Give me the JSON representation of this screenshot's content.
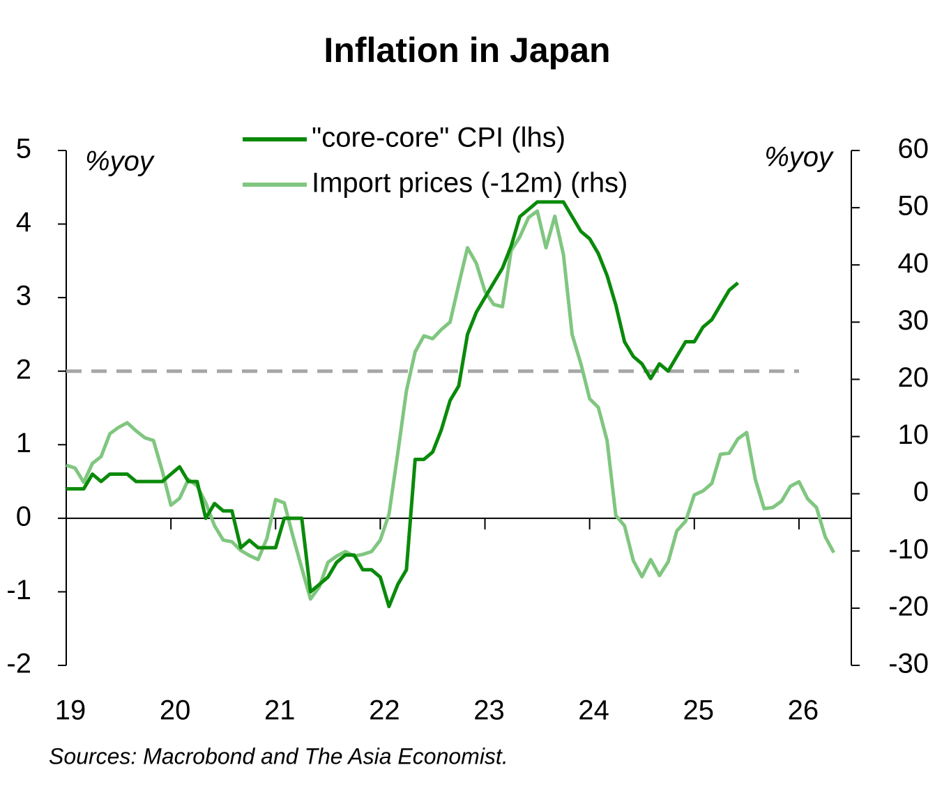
{
  "chart_data": {
    "type": "line",
    "title": "Inflation in Japan",
    "ylabel": "%yoy",
    "y2label": "%yoy",
    "source": "Sources: Macrobond and The Asia Economist.",
    "legend": "top",
    "x": [
      2019,
      2019.083,
      2019.167,
      2019.25,
      2019.333,
      2019.417,
      2019.5,
      2019.583,
      2019.667,
      2019.75,
      2019.833,
      2019.917,
      2020,
      2020.083,
      2020.167,
      2020.25,
      2020.333,
      2020.417,
      2020.5,
      2020.583,
      2020.667,
      2020.75,
      2020.833,
      2020.917,
      2021,
      2021.083,
      2021.167,
      2021.25,
      2021.333,
      2021.417,
      2021.5,
      2021.583,
      2021.667,
      2021.75,
      2021.833,
      2021.917,
      2022,
      2022.083,
      2022.167,
      2022.25,
      2022.333,
      2022.417,
      2022.5,
      2022.583,
      2022.667,
      2022.75,
      2022.833,
      2022.917,
      2023,
      2023.083,
      2023.167,
      2023.25,
      2023.333,
      2023.417,
      2023.5,
      2023.583,
      2023.667,
      2023.75,
      2023.833,
      2023.917,
      2024,
      2024.083,
      2024.167,
      2024.25,
      2024.333,
      2024.417,
      2024.5,
      2024.583,
      2024.667,
      2024.75,
      2024.833,
      2024.917,
      2025,
      2025.083,
      2025.167,
      2025.25,
      2025.333,
      2025.417,
      2025.5,
      2025.583,
      2025.667,
      2025.75,
      2025.833,
      2025.917,
      2026,
      2026.083,
      2026.167,
      2026.25,
      2026.333
    ],
    "series": [
      {
        "name": "\"core-core\" CPI (lhs)",
        "color": "#0a8a0a",
        "axis": "y",
        "values": [
          0.4,
          0.4,
          0.4,
          0.6,
          0.5,
          0.6,
          0.6,
          0.6,
          0.5,
          0.5,
          0.5,
          0.5,
          0.6,
          0.7,
          0.5,
          0.5,
          0.0,
          0.2,
          0.1,
          0.1,
          -0.4,
          -0.3,
          -0.4,
          -0.4,
          -0.4,
          0.0,
          0.0,
          0.0,
          -1.0,
          -0.9,
          -0.8,
          -0.6,
          -0.5,
          -0.5,
          -0.7,
          -0.7,
          -0.8,
          -1.2,
          -0.9,
          -0.7,
          0.8,
          0.8,
          0.9,
          1.2,
          1.6,
          1.8,
          2.5,
          2.8,
          3.0,
          3.2,
          3.4,
          3.7,
          4.1,
          4.2,
          4.3,
          4.3,
          4.3,
          4.3,
          4.1,
          3.9,
          3.8,
          3.6,
          3.3,
          2.9,
          2.4,
          2.2,
          2.1,
          1.9,
          2.1,
          2.0,
          2.2,
          2.4,
          2.4,
          2.6,
          2.7,
          2.9,
          3.1,
          3.2,
          null,
          null,
          null,
          null,
          null,
          null,
          null,
          null,
          null,
          null,
          null
        ]
      },
      {
        "name": "Import prices (-12m) (rhs)",
        "color": "#80c680",
        "axis": "y2",
        "values": [
          5,
          4.5,
          2,
          5.3,
          6.5,
          10.5,
          11.6,
          12.4,
          11,
          9.8,
          9.3,
          4,
          -2,
          -0.8,
          2.5,
          1.4,
          -1.6,
          -5.6,
          -8.1,
          -8.4,
          -9.9,
          -10.8,
          -11.5,
          -7.8,
          -1,
          -1.6,
          -7.5,
          -13,
          -18.4,
          -16.3,
          -12,
          -10.9,
          -10.1,
          -10.9,
          -10.6,
          -10.1,
          -8.1,
          -3.6,
          7.1,
          18,
          24.8,
          27.6,
          27.1,
          28.7,
          30,
          36.6,
          43,
          40.3,
          35.4,
          33.1,
          32.7,
          42.5,
          44.9,
          48.3,
          49.4,
          43,
          48.5,
          41.8,
          27.8,
          22.7,
          16.6,
          15.1,
          9.3,
          -3.8,
          -5.6,
          -11.7,
          -14.5,
          -11.5,
          -14.3,
          -11.9,
          -6.5,
          -4.8,
          -0.2,
          0.5,
          1.8,
          6.9,
          7.1,
          9.6,
          10.7,
          2.5,
          -2.6,
          -2.4,
          -1.3,
          1.3,
          2.1,
          -0.9,
          -2.4,
          -7.5,
          -10.3
        ]
      }
    ],
    "hline": {
      "y": 2,
      "x": [
        2019,
        2026
      ],
      "color": "#a6a6a6",
      "dashed": true
    },
    "xlim": [
      2019,
      2026.5
    ],
    "xticks": [
      {
        "value": 2019,
        "label": "19"
      },
      {
        "value": 2020,
        "label": "20"
      },
      {
        "value": 2021,
        "label": "21"
      },
      {
        "value": 2022,
        "label": "22"
      },
      {
        "value": 2023,
        "label": "23"
      },
      {
        "value": 2024,
        "label": "24"
      },
      {
        "value": 2025,
        "label": "25"
      },
      {
        "value": 2026,
        "label": "26"
      }
    ],
    "ylim": [
      -2,
      5
    ],
    "yticks": [
      -2,
      -1,
      0,
      1,
      2,
      3,
      4,
      5
    ],
    "y2lim": [
      -30,
      60
    ],
    "y2ticks": [
      -30,
      -20,
      -10,
      0,
      10,
      20,
      30,
      40,
      50,
      60
    ]
  }
}
